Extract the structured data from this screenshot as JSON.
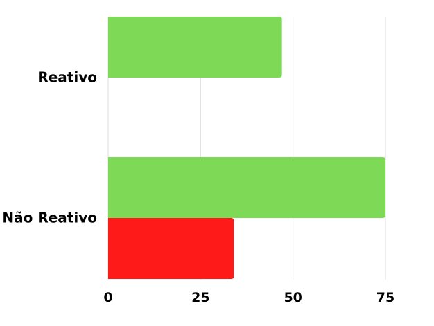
{
  "chart_data": {
    "type": "bar",
    "orientation": "horizontal",
    "categories": [
      "Reativo",
      "Não Reativo"
    ],
    "series": [
      {
        "color": "#7ED957",
        "values": [
          47,
          75
        ]
      },
      {
        "color": "#FF1A1A",
        "values": [
          null,
          34
        ]
      }
    ],
    "xlim": [
      0,
      75
    ],
    "xticks": [
      0,
      25,
      50,
      75
    ],
    "xtick_labels": [
      "0",
      "25",
      "50",
      "75"
    ],
    "grid": "vertical",
    "grid_color": "#DDDDDD",
    "title": "",
    "xlabel": "",
    "ylabel": ""
  }
}
